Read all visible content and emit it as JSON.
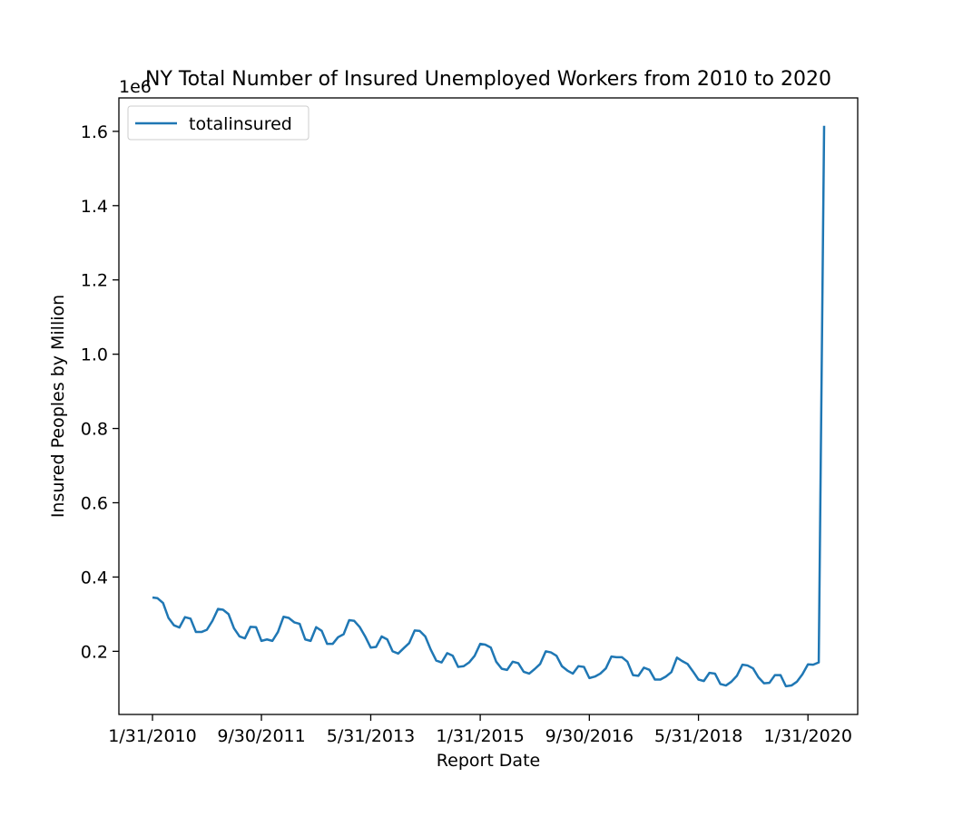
{
  "chart_data": {
    "type": "line",
    "title": "NY Total Number of Insured Unemployed Workers from 2010 to 2020",
    "xlabel": "Report Date",
    "ylabel": "Insured Peoples by Million",
    "y_offset_label": "1e6",
    "x_tick_labels": [
      "1/31/2010",
      "9/30/2011",
      "5/31/2013",
      "1/31/2015",
      "9/30/2016",
      "5/31/2018",
      "1/31/2020"
    ],
    "y_ticks": [
      0.2,
      0.4,
      0.6,
      0.8,
      1.0,
      1.2,
      1.4,
      1.6
    ],
    "y_tick_labels": [
      "0.2",
      "0.4",
      "0.6",
      "0.8",
      "1.0",
      "1.2",
      "1.4",
      "1.6"
    ],
    "ylim": [
      0.03,
      1.69
    ],
    "grid": false,
    "legend_position": "upper-left",
    "colors": {
      "series": "#1f77b4"
    },
    "series": [
      {
        "name": "totalinsured",
        "x": [
          "2010-01-31",
          "2010-02-28",
          "2010-03-31",
          "2010-04-30",
          "2010-05-31",
          "2010-06-30",
          "2010-07-31",
          "2010-08-31",
          "2010-09-30",
          "2010-10-31",
          "2010-11-30",
          "2010-12-31",
          "2011-01-31",
          "2011-02-28",
          "2011-03-31",
          "2011-04-30",
          "2011-05-31",
          "2011-06-30",
          "2011-07-31",
          "2011-08-31",
          "2011-09-30",
          "2011-10-31",
          "2011-11-30",
          "2011-12-31",
          "2012-01-31",
          "2012-02-29",
          "2012-03-31",
          "2012-04-30",
          "2012-05-31",
          "2012-06-30",
          "2012-07-31",
          "2012-08-31",
          "2012-09-30",
          "2012-10-31",
          "2012-11-30",
          "2012-12-31",
          "2013-01-31",
          "2013-02-28",
          "2013-03-31",
          "2013-04-30",
          "2013-05-31",
          "2013-06-30",
          "2013-07-31",
          "2013-08-31",
          "2013-09-30",
          "2013-10-31",
          "2013-11-30",
          "2013-12-31",
          "2014-01-31",
          "2014-02-28",
          "2014-03-31",
          "2014-04-30",
          "2014-05-31",
          "2014-06-30",
          "2014-07-31",
          "2014-08-31",
          "2014-09-30",
          "2014-10-31",
          "2014-11-30",
          "2014-12-31",
          "2015-01-31",
          "2015-02-28",
          "2015-03-31",
          "2015-04-30",
          "2015-05-31",
          "2015-06-30",
          "2015-07-31",
          "2015-08-31",
          "2015-09-30",
          "2015-10-31",
          "2015-11-30",
          "2015-12-31",
          "2016-01-31",
          "2016-02-29",
          "2016-03-31",
          "2016-04-30",
          "2016-05-31",
          "2016-06-30",
          "2016-07-31",
          "2016-08-31",
          "2016-09-30",
          "2016-10-31",
          "2016-11-30",
          "2016-12-31",
          "2017-01-31",
          "2017-02-28",
          "2017-03-31",
          "2017-04-30",
          "2017-05-31",
          "2017-06-30",
          "2017-07-31",
          "2017-08-31",
          "2017-09-30",
          "2017-10-31",
          "2017-11-30",
          "2017-12-31",
          "2018-01-31",
          "2018-02-28",
          "2018-03-31",
          "2018-04-30",
          "2018-05-31",
          "2018-06-30",
          "2018-07-31",
          "2018-08-31",
          "2018-09-30",
          "2018-10-31",
          "2018-11-30",
          "2018-12-31",
          "2019-01-31",
          "2019-02-28",
          "2019-03-31",
          "2019-04-30",
          "2019-05-31",
          "2019-06-30",
          "2019-07-31",
          "2019-08-31",
          "2019-09-30",
          "2019-10-31",
          "2019-11-30",
          "2019-12-31",
          "2020-01-31",
          "2020-02-29",
          "2020-03-31",
          "2020-04-30"
        ],
        "values": [
          0.345,
          0.343,
          0.33,
          0.29,
          0.27,
          0.264,
          0.292,
          0.288,
          0.252,
          0.252,
          0.258,
          0.282,
          0.314,
          0.312,
          0.3,
          0.262,
          0.24,
          0.235,
          0.266,
          0.265,
          0.228,
          0.232,
          0.228,
          0.252,
          0.293,
          0.29,
          0.278,
          0.274,
          0.232,
          0.228,
          0.265,
          0.255,
          0.22,
          0.22,
          0.238,
          0.246,
          0.284,
          0.282,
          0.265,
          0.24,
          0.21,
          0.212,
          0.24,
          0.232,
          0.2,
          0.194,
          0.208,
          0.222,
          0.256,
          0.255,
          0.24,
          0.205,
          0.175,
          0.17,
          0.195,
          0.188,
          0.158,
          0.16,
          0.17,
          0.188,
          0.22,
          0.218,
          0.21,
          0.172,
          0.153,
          0.15,
          0.172,
          0.168,
          0.145,
          0.14,
          0.152,
          0.166,
          0.2,
          0.197,
          0.188,
          0.16,
          0.148,
          0.14,
          0.16,
          0.158,
          0.128,
          0.132,
          0.14,
          0.154,
          0.186,
          0.184,
          0.184,
          0.172,
          0.136,
          0.134,
          0.156,
          0.15,
          0.124,
          0.124,
          0.132,
          0.144,
          0.183,
          0.174,
          0.166,
          0.146,
          0.124,
          0.12,
          0.142,
          0.14,
          0.112,
          0.108,
          0.118,
          0.134,
          0.164,
          0.162,
          0.154,
          0.13,
          0.114,
          0.115,
          0.136,
          0.136,
          0.106,
          0.108,
          0.118,
          0.138,
          0.165,
          0.164,
          0.17,
          1.615
        ]
      }
    ]
  }
}
